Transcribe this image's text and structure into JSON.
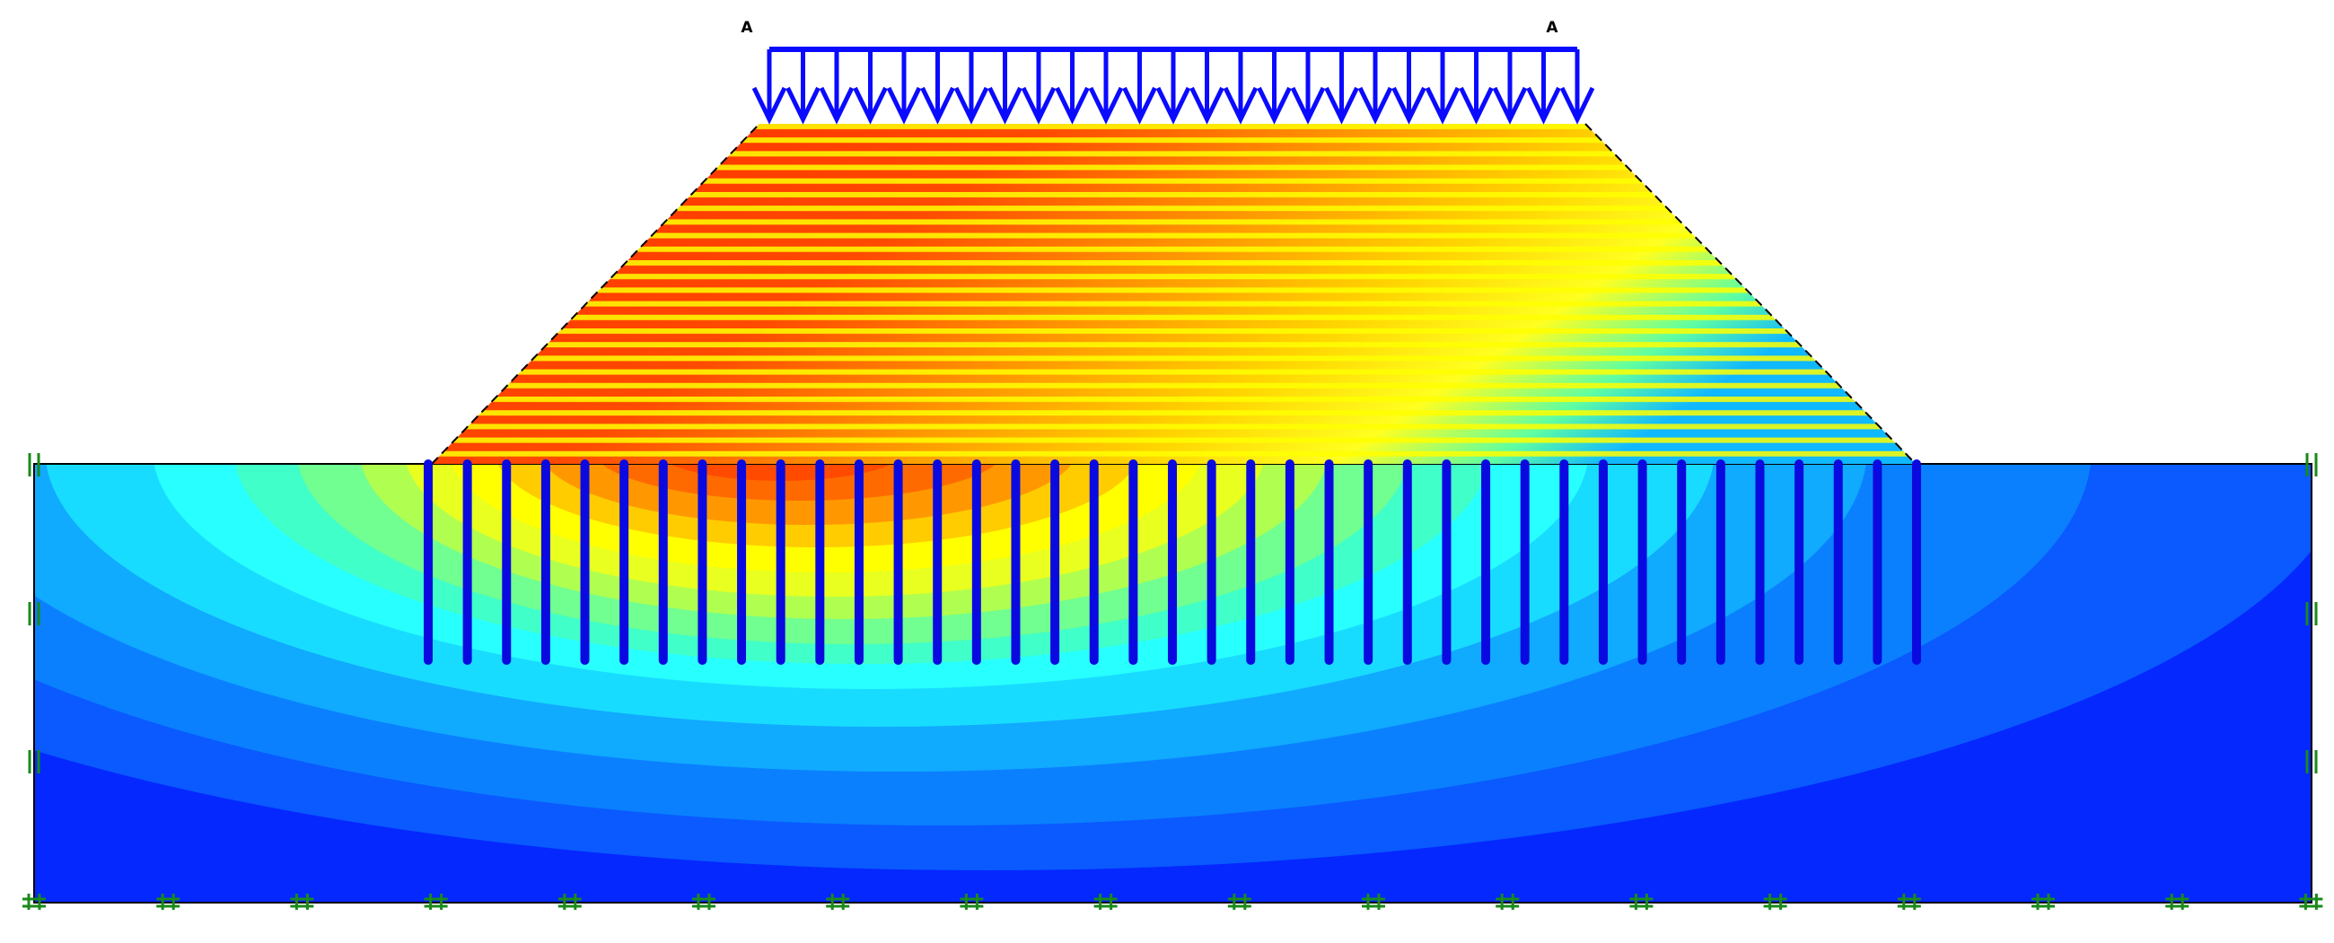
{
  "load_labels": [
    "A",
    "A"
  ]
}
